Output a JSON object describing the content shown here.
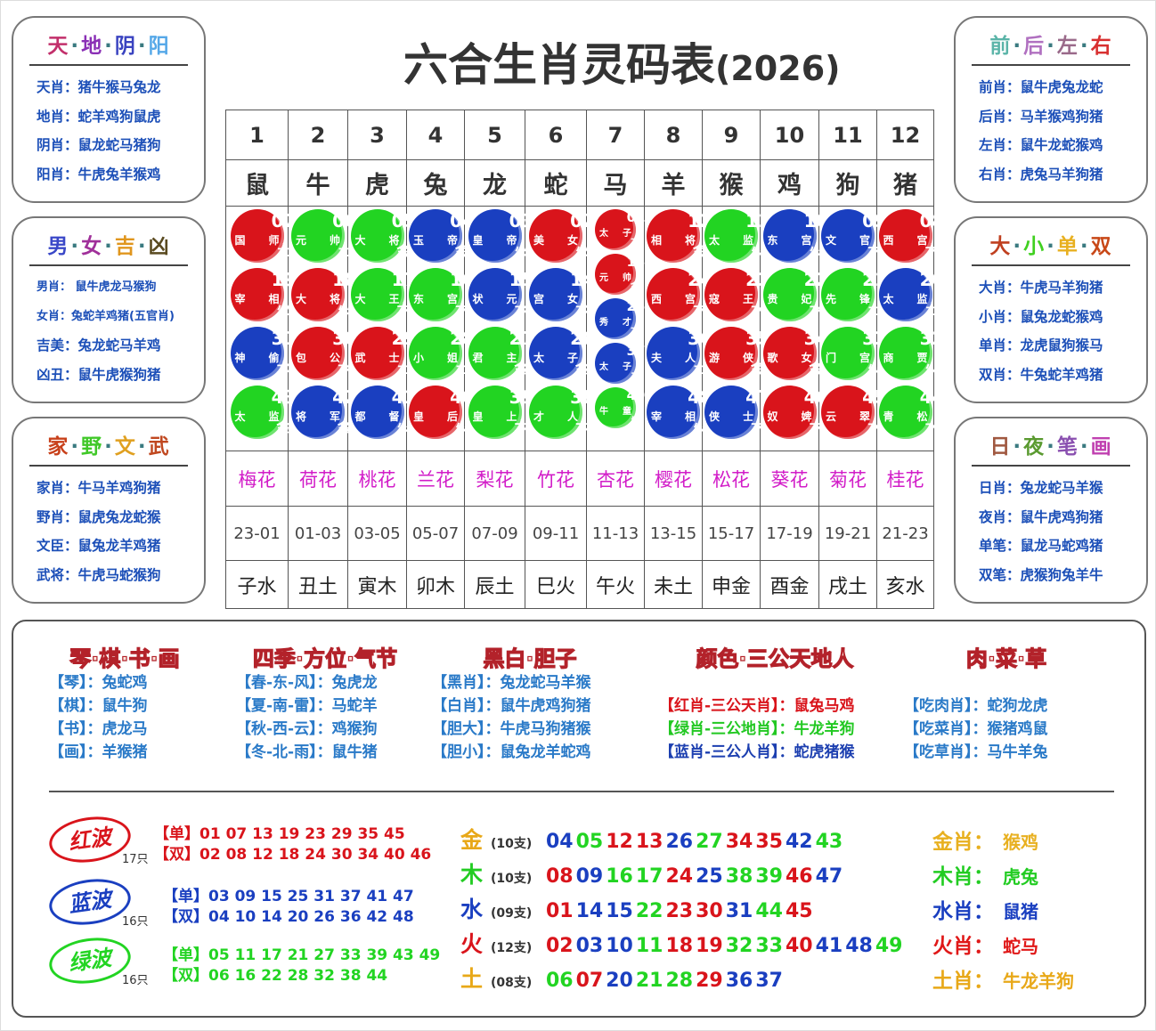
{
  "title": {
    "main": "六合生肖灵码表",
    "year": "(2026)"
  },
  "colors": {
    "red": "#d9141b",
    "green": "#22d422",
    "blue": "#1a3fc0",
    "item": "#1c4fb8"
  },
  "left_panels": [
    {
      "heading": [
        "天",
        "地",
        "阴",
        "阳"
      ],
      "heading_colors": [
        "#c2306b",
        "#8a2fb5",
        "#3a43c0",
        "#56a8e8"
      ],
      "rows": [
        "天肖：猪牛猴马兔龙",
        "地肖：蛇羊鸡狗鼠虎",
        "阴肖：鼠龙蛇马猪狗",
        "阳肖：牛虎兔羊猴鸡"
      ]
    },
    {
      "heading": [
        "男",
        "女",
        "吉",
        "凶"
      ],
      "heading_colors": [
        "#3a48c8",
        "#a0309a",
        "#e0961e",
        "#5a4a20"
      ],
      "rows": [
        "男肖： 鼠牛虎龙马猴狗",
        "女肖：兔蛇羊鸡猪(五官肖)",
        "吉美：兔龙蛇马羊鸡",
        "凶丑：鼠牛虎猴狗猪"
      ]
    },
    {
      "heading": [
        "家",
        "野",
        "文",
        "武"
      ],
      "heading_colors": [
        "#c8401a",
        "#40c828",
        "#e0a020",
        "#c04820"
      ],
      "rows": [
        "家肖：牛马羊鸡狗猪",
        "野肖：鼠虎兔龙蛇猴",
        "文臣：鼠兔龙羊鸡猪",
        "武将：牛虎马蛇猴狗"
      ]
    }
  ],
  "right_panels": [
    {
      "heading": [
        "前",
        "后",
        "左",
        "右"
      ],
      "heading_colors": [
        "#5ab4a8",
        "#b070c0",
        "#9a6a8a",
        "#d83030"
      ],
      "rows": [
        "前肖：鼠牛虎兔龙蛇",
        "后肖：马羊猴鸡狗猪",
        "左肖：鼠牛龙蛇猴鸡",
        "右肖：虎兔马羊狗猪"
      ]
    },
    {
      "heading": [
        "大",
        "小",
        "单",
        "双"
      ],
      "heading_colors": [
        "#c04020",
        "#40d020",
        "#e8b020",
        "#c84818"
      ],
      "rows": [
        "大肖：牛虎马羊狗猪",
        "小肖：鼠兔龙蛇猴鸡",
        "单肖：龙虎鼠狗猴马",
        "双肖：牛兔蛇羊鸡猪"
      ]
    },
    {
      "heading": [
        "日",
        "夜",
        "笔",
        "画"
      ],
      "heading_colors": [
        "#a05840",
        "#5a9a30",
        "#8a50b0",
        "#c040b0"
      ],
      "rows": [
        "日肖：兔龙蛇马羊猴",
        "夜肖：鼠牛虎鸡狗猪",
        "单笔：鼠龙马蛇鸡猪",
        "双笔：虎猴狗兔羊牛"
      ]
    }
  ],
  "grid": {
    "columns": [
      {
        "num": "1",
        "zodiac": "鼠",
        "flower": "梅花",
        "hours": "23-01",
        "branch": "子水",
        "balls": [
          [
            "07",
            "国",
            "师",
            "土",
            "red"
          ],
          [
            "19",
            "宰",
            "相",
            "火",
            "red"
          ],
          [
            "31",
            "神",
            "偷",
            "水",
            "blue"
          ],
          [
            "43",
            "太",
            "监",
            "金",
            "green"
          ]
        ]
      },
      {
        "num": "2",
        "zodiac": "牛",
        "flower": "荷花",
        "hours": "01-03",
        "branch": "丑土",
        "balls": [
          [
            "06",
            "元",
            "帅",
            "土",
            "green"
          ],
          [
            "18",
            "大",
            "将",
            "火",
            "red"
          ],
          [
            "30",
            "包",
            "公",
            "水",
            "red"
          ],
          [
            "42",
            "将",
            "军",
            "金",
            "blue"
          ]
        ]
      },
      {
        "num": "3",
        "zodiac": "虎",
        "flower": "桃花",
        "hours": "03-05",
        "branch": "寅木",
        "balls": [
          [
            "05",
            "大",
            "将",
            "金",
            "green"
          ],
          [
            "17",
            "大",
            "王",
            "木",
            "green"
          ],
          [
            "29",
            "武",
            "士",
            "土",
            "red"
          ],
          [
            "41",
            "都",
            "督",
            "火",
            "blue"
          ]
        ]
      },
      {
        "num": "4",
        "zodiac": "兔",
        "flower": "兰花",
        "hours": "05-07",
        "branch": "卯木",
        "balls": [
          [
            "04",
            "玉",
            "帝",
            "金",
            "blue"
          ],
          [
            "16",
            "东",
            "宫",
            "木",
            "green"
          ],
          [
            "28",
            "小",
            "姐",
            "土",
            "green"
          ],
          [
            "40",
            "皇",
            "后",
            "火",
            "red"
          ]
        ]
      },
      {
        "num": "5",
        "zodiac": "龙",
        "flower": "梨花",
        "hours": "07-09",
        "branch": "辰土",
        "balls": [
          [
            "03",
            "皇",
            "帝",
            "火",
            "blue"
          ],
          [
            "15",
            "状",
            "元",
            "水",
            "blue"
          ],
          [
            "27",
            "君",
            "主",
            "金",
            "green"
          ],
          [
            "39",
            "皇",
            "上",
            "木",
            "green"
          ]
        ]
      },
      {
        "num": "6",
        "zodiac": "蛇",
        "flower": "竹花",
        "hours": "09-11",
        "branch": "巳火",
        "balls": [
          [
            "02",
            "美",
            "女",
            "火",
            "red"
          ],
          [
            "14",
            "宫",
            "女",
            "水",
            "blue"
          ],
          [
            "26",
            "太",
            "子",
            "金",
            "blue"
          ],
          [
            "38",
            "才",
            "人",
            "木",
            "green"
          ]
        ]
      },
      {
        "num": "7",
        "zodiac": "马",
        "flower": "杏花",
        "hours": "11-13",
        "branch": "午火",
        "balls": [
          [
            "01",
            "太",
            "子",
            "水",
            "red"
          ],
          [
            "13",
            "元",
            "帅",
            "金",
            "red"
          ],
          [
            "25",
            "秀",
            "才",
            "木",
            "blue"
          ],
          [
            "37",
            "太",
            "子",
            "土",
            "blue"
          ],
          [
            "49",
            "牛",
            "童",
            "火",
            "green"
          ]
        ]
      },
      {
        "num": "8",
        "zodiac": "羊",
        "flower": "樱花",
        "hours": "13-15",
        "branch": "未土",
        "balls": [
          [
            "12",
            "相",
            "将",
            "金",
            "red"
          ],
          [
            "24",
            "西",
            "宫",
            "木",
            "red"
          ],
          [
            "36",
            "夫",
            "人",
            "土",
            "blue"
          ],
          [
            "48",
            "宰",
            "相",
            "火",
            "blue"
          ]
        ]
      },
      {
        "num": "9",
        "zodiac": "猴",
        "flower": "松花",
        "hours": "15-17",
        "branch": "申金",
        "balls": [
          [
            "11",
            "太",
            "监",
            "火",
            "green"
          ],
          [
            "23",
            "寇",
            "王",
            "水",
            "red"
          ],
          [
            "35",
            "游",
            "侠",
            "金",
            "red"
          ],
          [
            "47",
            "侠",
            "士",
            "木",
            "blue"
          ]
        ]
      },
      {
        "num": "10",
        "zodiac": "鸡",
        "flower": "葵花",
        "hours": "17-19",
        "branch": "酉金",
        "balls": [
          [
            "10",
            "东",
            "宫",
            "火",
            "blue"
          ],
          [
            "22",
            "贵",
            "妃",
            "水",
            "green"
          ],
          [
            "34",
            "歌",
            "女",
            "金",
            "red"
          ],
          [
            "46",
            "奴",
            "婢",
            "木",
            "red"
          ]
        ]
      },
      {
        "num": "11",
        "zodiac": "狗",
        "flower": "菊花",
        "hours": "19-21",
        "branch": "戌土",
        "balls": [
          [
            "09",
            "文",
            "官",
            "木",
            "blue"
          ],
          [
            "21",
            "先",
            "锋",
            "土",
            "green"
          ],
          [
            "33",
            "门",
            "宫",
            "火",
            "green"
          ],
          [
            "45",
            "云",
            "翠",
            "水",
            "red"
          ]
        ]
      },
      {
        "num": "12",
        "zodiac": "猪",
        "flower": "桂花",
        "hours": "21-23",
        "branch": "亥水",
        "balls": [
          [
            "08",
            "西",
            "宫",
            "木",
            "red"
          ],
          [
            "20",
            "太",
            "监",
            "土",
            "blue"
          ],
          [
            "32",
            "商",
            "贾",
            "火",
            "green"
          ],
          [
            "44",
            "青",
            "松",
            "水",
            "green"
          ]
        ]
      }
    ]
  },
  "sections": [
    {
      "heading": "琴·棋·书·画",
      "items": [
        "【琴】：兔蛇鸡",
        "【棋】：鼠牛狗",
        "【书】：虎龙马",
        "【画】：羊猴猪"
      ]
    },
    {
      "heading": "四季·方位·气节",
      "items": [
        "【春-东-风】：兔虎龙",
        "【夏-南-雷】：马蛇羊",
        "【秋-西-云】：鸡猴狗",
        "【冬-北-雨】：鼠牛猪"
      ]
    },
    {
      "heading": "黑白·胆子",
      "items": [
        "【黑肖】：兔龙蛇马羊猴",
        "【白肖】：鼠牛虎鸡狗猪",
        "【胆大】：牛虎马狗猪猴",
        "【胆小】：鼠兔龙羊蛇鸡"
      ]
    },
    {
      "heading": "颜色·三公天地人",
      "items": [
        "",
        "【红肖-三公天肖】：鼠兔马鸡",
        "【绿肖-三公地肖】：牛龙羊狗",
        "【蓝肖-三公人肖】：蛇虎猪猴"
      ],
      "item_colors": [
        "",
        "#d9141b",
        "#22c822",
        "#1c3fb0"
      ]
    },
    {
      "heading": "肉·菜·草",
      "items": [
        "",
        "【吃肉肖】：蛇狗龙虎",
        "【吃菜肖】：猴猪鸡鼠",
        "【吃草肖】：马牛羊兔"
      ]
    }
  ],
  "waves": [
    {
      "name": "红波",
      "count": "17只",
      "color": "red",
      "odd_label": "【单】",
      "odd": "01 07 13 19 23 29 35 45",
      "even_label": "【双】",
      "even": "02 08 12 18 24 30 34 40 46"
    },
    {
      "name": "蓝波",
      "count": "16只",
      "color": "blue",
      "odd_label": "【单】",
      "odd": "03 09 15 25 31 37 41 47",
      "even_label": "【双】",
      "even": "04 10 14 20 26 36 42 48"
    },
    {
      "name": "绿波",
      "count": "16只",
      "color": "green",
      "odd_label": "【单】",
      "odd": "05 11 17 21 27 33 39 43 49",
      "even_label": "【双】",
      "even": "06 16 22 28 32 38 44"
    }
  ],
  "elements": [
    {
      "name": "金",
      "count": "(10支)",
      "color": "#e8a818",
      "numbers": [
        "04",
        "05",
        "12",
        "13",
        "26",
        "27",
        "34",
        "35",
        "42",
        "43"
      ]
    },
    {
      "name": "木",
      "count": "(10支)",
      "color": "#22cc22",
      "numbers": [
        "08",
        "09",
        "16",
        "17",
        "24",
        "25",
        "38",
        "39",
        "46",
        "47"
      ]
    },
    {
      "name": "水",
      "count": "(09支)",
      "color": "#1a3fc0",
      "numbers": [
        "01",
        "14",
        "15",
        "22",
        "23",
        "30",
        "31",
        "44",
        "45"
      ]
    },
    {
      "name": "火",
      "count": "(12支)",
      "color": "#d9141b",
      "numbers": [
        "02",
        "03",
        "10",
        "11",
        "18",
        "19",
        "32",
        "33",
        "40",
        "41",
        "48",
        "49"
      ]
    },
    {
      "name": "土",
      "count": "(08支)",
      "color": "#e8a818",
      "numbers": [
        "06",
        "07",
        "20",
        "21",
        "28",
        "29",
        "36",
        "37"
      ]
    }
  ],
  "element_zodiac": [
    {
      "label": "金肖：",
      "value": "猴鸡",
      "color": "#e8b020"
    },
    {
      "label": "木肖：",
      "value": "虎兔",
      "color": "#22cc22"
    },
    {
      "label": "水肖：",
      "value": "鼠猪",
      "color": "#1a3fc0"
    },
    {
      "label": "火肖：",
      "value": "蛇马",
      "color": "#e01818"
    },
    {
      "label": "土肖：",
      "value": "牛龙羊狗",
      "color": "#e8a818"
    }
  ]
}
